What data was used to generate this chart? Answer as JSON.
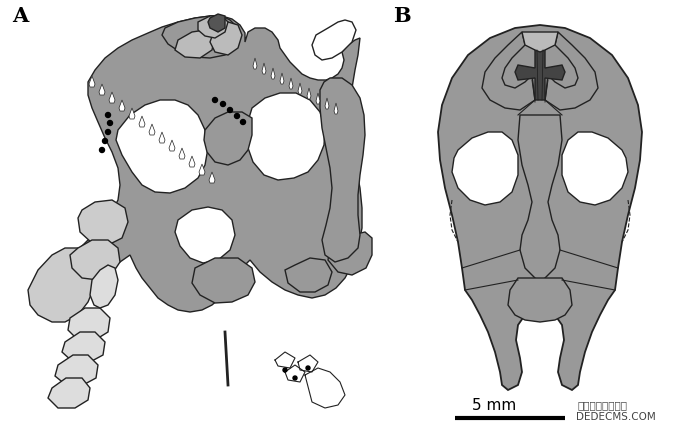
{
  "background_color": "#ffffff",
  "label_A": "A",
  "label_B": "B",
  "scale_text": "5 mm",
  "watermark_line1": "织梦内容管理系统",
  "watermark_line2": "DEDECMS.COM",
  "dark_gray": "#999999",
  "medium_gray": "#bbbbbb",
  "light_gray": "#cccccc",
  "lighter_gray": "#dddddd",
  "outline_color": "#222222",
  "black": "#000000",
  "white": "#ffffff"
}
